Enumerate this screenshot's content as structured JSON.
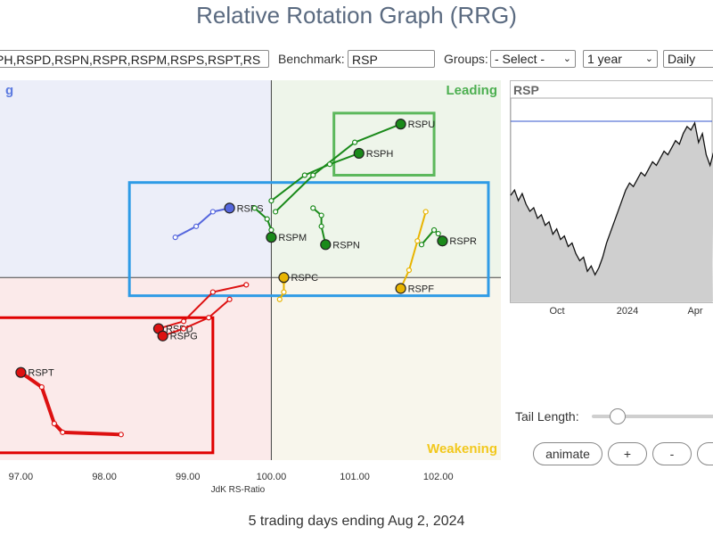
{
  "title": "Relative Rotation Graph (RRG)",
  "toolbar": {
    "symbols_value": "PH,RSPD,RSPN,RSPR,RSPM,RSPS,RSPT,RS",
    "benchmark_label": "Benchmark:",
    "benchmark_value": "RSP",
    "groups_label": "Groups:",
    "groups_value": "- Select -",
    "period_value": "1 year",
    "frequency_value": "Daily"
  },
  "footer": "5 trading days ending Aug 2, 2024",
  "controls": {
    "tail_length_label": "Tail Length:",
    "tail_length_fraction": 0.2,
    "animate_label": "animate",
    "plus_label": "+",
    "minus_label": "-"
  },
  "colors": {
    "leading": "#4caf50",
    "weakening": "#f2c81c",
    "lagging": "#e53935",
    "improving": "#5c7ae0",
    "highlight_red": "#e00000",
    "highlight_green": "#5cb85c",
    "highlight_blue": "#2e9be6",
    "price_line": "#3355cc"
  },
  "chart_data": [
    {
      "type": "scatter",
      "title": "",
      "xlabel": "JdK RS-Ratio",
      "ylabel": "",
      "xlim": [
        96.75,
        102.75
      ],
      "ylim": [
        97.5,
        102.7
      ],
      "center": [
        100,
        100
      ],
      "x_ticks": [
        "97.00",
        "98.00",
        "99.00",
        "100.00",
        "101.00",
        "102.00"
      ],
      "quadrant_labels": [
        "g",
        "Leading",
        "Weakening"
      ],
      "grid": false,
      "series": [
        {
          "name": "RSPU",
          "color": "#1a8a1a",
          "x": [
            100.05,
            100.5,
            101.0,
            101.55
          ],
          "y": [
            100.9,
            101.4,
            101.85,
            102.1
          ]
        },
        {
          "name": "RSPH",
          "color": "#1a8a1a",
          "x": [
            100.0,
            100.4,
            100.7,
            101.05
          ],
          "y": [
            101.05,
            101.4,
            101.55,
            101.7
          ]
        },
        {
          "name": "RSPS",
          "color": "#5566dd",
          "x": [
            98.85,
            99.1,
            99.3,
            99.5
          ],
          "y": [
            100.55,
            100.7,
            100.9,
            100.95
          ]
        },
        {
          "name": "RSPM",
          "color": "#1a8a1a",
          "x": [
            99.8,
            99.95,
            100.0,
            100.0
          ],
          "y": [
            100.95,
            100.8,
            100.65,
            100.55
          ]
        },
        {
          "name": "RSPN",
          "color": "#1a8a1a",
          "x": [
            100.5,
            100.6,
            100.6,
            100.65
          ],
          "y": [
            100.95,
            100.85,
            100.7,
            100.45
          ]
        },
        {
          "name": "RSPR",
          "color": "#1a8a1a",
          "x": [
            101.8,
            101.95,
            102.0,
            102.05
          ],
          "y": [
            100.45,
            100.65,
            100.6,
            100.5
          ]
        },
        {
          "name": "RSPF",
          "color": "#e8b400",
          "x": [
            101.85,
            101.75,
            101.65,
            101.55
          ],
          "y": [
            100.9,
            100.5,
            100.1,
            99.85
          ]
        },
        {
          "name": "RSPC",
          "color": "#e8b400",
          "x": [
            100.1,
            100.15,
            100.15,
            100.15
          ],
          "y": [
            99.7,
            99.8,
            99.95,
            100.0
          ]
        },
        {
          "name": "RSPD",
          "color": "#dd1111",
          "x": [
            99.7,
            99.3,
            98.95,
            98.65
          ],
          "y": [
            99.9,
            99.8,
            99.4,
            99.3
          ]
        },
        {
          "name": "RSPG",
          "color": "#dd1111",
          "x": [
            99.5,
            99.25,
            98.95,
            98.7
          ],
          "y": [
            99.7,
            99.45,
            99.3,
            99.2
          ]
        },
        {
          "name": "RSPT",
          "color": "#dd1111",
          "x": [
            98.2,
            97.5,
            97.4,
            97.25,
            97.0
          ],
          "y": [
            97.85,
            97.88,
            98.0,
            98.5,
            98.7
          ]
        }
      ]
    },
    {
      "type": "line",
      "title": "RSP",
      "x_ticks": [
        "Oct",
        "2024",
        "Apr"
      ],
      "reference_line": "horizontal",
      "series": [
        {
          "name": "RSP",
          "values": [
            0.55,
            0.58,
            0.52,
            0.56,
            0.5,
            0.46,
            0.48,
            0.42,
            0.44,
            0.38,
            0.4,
            0.33,
            0.36,
            0.3,
            0.32,
            0.26,
            0.28,
            0.22,
            0.18,
            0.2,
            0.12,
            0.15,
            0.1,
            0.14,
            0.2,
            0.28,
            0.34,
            0.4,
            0.46,
            0.52,
            0.58,
            0.62,
            0.6,
            0.64,
            0.68,
            0.66,
            0.7,
            0.74,
            0.72,
            0.76,
            0.8,
            0.78,
            0.82,
            0.86,
            0.84,
            0.9,
            0.94,
            0.92,
            0.96,
            0.85,
            0.9,
            0.78,
            0.72,
            0.8
          ]
        }
      ]
    }
  ]
}
